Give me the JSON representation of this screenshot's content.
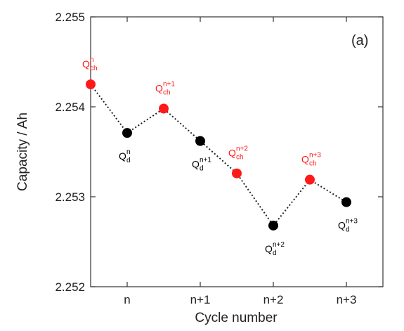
{
  "chart_data": {
    "type": "scatter",
    "panel_label": "(a)",
    "xlabel": "Cycle number",
    "ylabel": "Capacity  / Ah",
    "x_categories": [
      "n",
      "n+1",
      "n+2",
      "n+3"
    ],
    "xlim": [
      -0.5,
      3.5
    ],
    "ylim": [
      2.252,
      2.255
    ],
    "y_ticks": [
      "2.252",
      "2.253",
      "2.254",
      "2.255"
    ],
    "y_tick_values": [
      2.252,
      2.253,
      2.254,
      2.255
    ],
    "grid": false,
    "line_style": "dotted",
    "colors": {
      "charge": "#ff1a1a",
      "discharge": "#000000",
      "line": "#222222"
    },
    "points": [
      {
        "x": -0.5,
        "y": 2.25425,
        "kind": "charge",
        "label_main": "Q",
        "label_sub": "ch",
        "label_sup": "n",
        "label_pos": "above"
      },
      {
        "x": 0.0,
        "y": 2.25371,
        "kind": "discharge",
        "label_main": "Q",
        "label_sub": "d",
        "label_sup": "n",
        "label_pos": "below"
      },
      {
        "x": 0.5,
        "y": 2.25398,
        "kind": "charge",
        "label_main": "Q",
        "label_sub": "ch",
        "label_sup": "n+1",
        "label_pos": "above"
      },
      {
        "x": 1.0,
        "y": 2.25362,
        "kind": "discharge",
        "label_main": "Q",
        "label_sub": "d",
        "label_sup": "n+1",
        "label_pos": "below"
      },
      {
        "x": 1.5,
        "y": 2.25326,
        "kind": "charge",
        "label_main": "Q",
        "label_sub": "ch",
        "label_sup": "n+2",
        "label_pos": "above"
      },
      {
        "x": 2.0,
        "y": 2.25268,
        "kind": "discharge",
        "label_main": "Q",
        "label_sub": "d",
        "label_sup": "n+2",
        "label_pos": "below"
      },
      {
        "x": 2.5,
        "y": 2.25319,
        "kind": "charge",
        "label_main": "Q",
        "label_sub": "ch",
        "label_sup": "n+3",
        "label_pos": "above"
      },
      {
        "x": 3.0,
        "y": 2.25294,
        "kind": "discharge",
        "label_main": "Q",
        "label_sub": "d",
        "label_sup": "n+3",
        "label_pos": "below"
      }
    ]
  }
}
